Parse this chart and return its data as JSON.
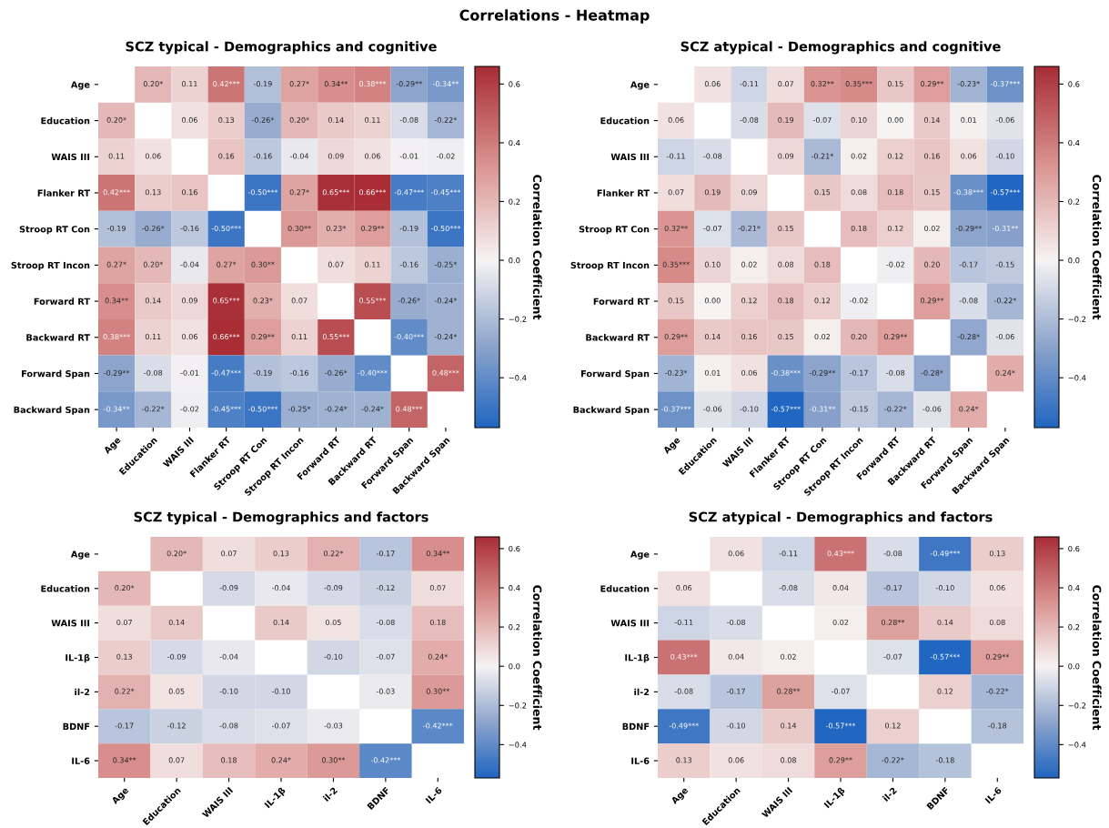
{
  "chart_data": [
    {
      "type": "heatmap",
      "title": "SCZ typical - Demographics and cognitive",
      "clabel": "Correlation Coefficient",
      "annotations": [
        "Correlations - Heatmap"
      ],
      "categories": [
        "Age",
        "Education",
        "WAIS III",
        "Flanker RT",
        "Stroop RT Con",
        "Stroop RT Incon",
        "Forward RT",
        "Backward RT",
        "Forward Span",
        "Backward Span"
      ],
      "y_categories": [
        "Age",
        "Education",
        "WAIS III",
        "Flanker RT",
        "Stroop RT Con",
        "Stroop RT Incon",
        "Forward RT",
        "Backward RT",
        "Forward Span",
        "Backward Span"
      ],
      "clim": [
        -0.57,
        0.66
      ],
      "cticks": [
        {
          "value": -0.4,
          "label": "−0.4"
        },
        {
          "value": -0.2,
          "label": "−0.2"
        },
        {
          "value": 0.0,
          "label": "0.0"
        },
        0.2,
        0.4,
        0.6
      ],
      "cells": [
        [
          null,
          0.2,
          0.11,
          0.42,
          -0.19,
          0.27,
          0.34,
          0.38,
          -0.29,
          -0.34
        ],
        [
          0.2,
          null,
          0.06,
          0.13,
          -0.26,
          0.2,
          0.14,
          0.11,
          -0.08,
          -0.22
        ],
        [
          0.11,
          0.06,
          null,
          0.16,
          -0.16,
          -0.04,
          0.09,
          0.06,
          -0.01,
          -0.02
        ],
        [
          0.42,
          0.13,
          0.16,
          null,
          -0.5,
          0.27,
          0.65,
          0.66,
          -0.47,
          -0.45
        ],
        [
          -0.19,
          -0.26,
          -0.16,
          -0.5,
          null,
          0.3,
          0.23,
          0.29,
          -0.19,
          -0.5
        ],
        [
          0.27,
          0.2,
          -0.04,
          0.27,
          0.3,
          null,
          0.07,
          0.11,
          -0.16,
          -0.25
        ],
        [
          0.34,
          0.14,
          0.09,
          0.65,
          0.23,
          0.07,
          null,
          0.55,
          -0.26,
          -0.24
        ],
        [
          0.38,
          0.11,
          0.06,
          0.66,
          0.29,
          0.11,
          0.55,
          null,
          -0.4,
          -0.24
        ],
        [
          -0.29,
          -0.08,
          -0.01,
          -0.47,
          -0.19,
          -0.16,
          -0.26,
          -0.4,
          null,
          0.48
        ],
        [
          -0.34,
          -0.22,
          -0.02,
          -0.45,
          -0.5,
          -0.25,
          -0.24,
          -0.24,
          0.48,
          null
        ]
      ],
      "cell_labels": [
        [
          null,
          "0.20*",
          "0.11",
          "0.42***",
          "-0.19",
          "0.27*",
          "0.34**",
          "0.38***",
          "-0.29**",
          "-0.34**"
        ],
        [
          "0.20*",
          null,
          "0.06",
          "0.13",
          "-0.26*",
          "0.20*",
          "0.14",
          "0.11",
          "-0.08",
          "-0.22*"
        ],
        [
          "0.11",
          "0.06",
          null,
          "0.16",
          "-0.16",
          "-0.04",
          "0.09",
          "0.06",
          "-0.01",
          "-0.02"
        ],
        [
          "0.42***",
          "0.13",
          "0.16",
          null,
          "-0.50***",
          "0.27*",
          "0.65***",
          "0.66***",
          "-0.47***",
          "-0.45***"
        ],
        [
          "-0.19",
          "-0.26*",
          "-0.16",
          "-0.50***",
          null,
          "0.30**",
          "0.23*",
          "0.29**",
          "-0.19",
          "-0.50***"
        ],
        [
          "0.27*",
          "0.20*",
          "-0.04",
          "0.27*",
          "0.30**",
          null,
          "0.07",
          "0.11",
          "-0.16",
          "-0.25*"
        ],
        [
          "0.34**",
          "0.14",
          "0.09",
          "0.65***",
          "0.23*",
          "0.07",
          null,
          "0.55***",
          "-0.26*",
          "-0.24*"
        ],
        [
          "0.38***",
          "0.11",
          "0.06",
          "0.66***",
          "0.29**",
          "0.11",
          "0.55***",
          null,
          "-0.40***",
          "-0.24*"
        ],
        [
          "-0.29**",
          "-0.08",
          "-0.01",
          "-0.47***",
          "-0.19",
          "-0.16",
          "-0.26*",
          "-0.40***",
          null,
          "0.48***"
        ],
        [
          "-0.34**",
          "-0.22*",
          "-0.02",
          "-0.45***",
          "-0.50***",
          "-0.25*",
          "-0.24*",
          "-0.24*",
          "0.48***",
          null
        ]
      ]
    },
    {
      "type": "heatmap",
      "title": "SCZ atypical - Demographics and cognitive",
      "clabel": "Correlation Coefficient",
      "categories": [
        "Age",
        "Education",
        "WAIS III",
        "Flanker RT",
        "Stroop RT Con",
        "Stroop RT Incon",
        "Forward RT",
        "Backward RT",
        "Forward Span",
        "Backward Span"
      ],
      "y_categories": [
        "Age",
        "Education",
        "WAIS III",
        "Flanker RT",
        "Stroop RT Con",
        "Stroop RT Incon",
        "Forward RT",
        "Backward RT",
        "Forward Span",
        "Backward Span"
      ],
      "clim": [
        -0.57,
        0.66
      ],
      "cticks": [
        {
          "value": -0.4,
          "label": "−0.4"
        },
        {
          "value": -0.2,
          "label": "−0.2"
        },
        {
          "value": 0.0,
          "label": "0.0"
        },
        0.2,
        0.4,
        0.6
      ],
      "cells": [
        [
          null,
          0.06,
          -0.11,
          0.07,
          0.32,
          0.35,
          0.15,
          0.29,
          -0.23,
          -0.37
        ],
        [
          0.06,
          null,
          -0.08,
          0.19,
          -0.07,
          0.1,
          0.0,
          0.14,
          0.01,
          -0.06
        ],
        [
          -0.11,
          -0.08,
          null,
          0.09,
          -0.21,
          0.02,
          0.12,
          0.16,
          0.06,
          -0.1
        ],
        [
          0.07,
          0.19,
          0.09,
          null,
          0.15,
          0.08,
          0.18,
          0.15,
          -0.38,
          -0.57
        ],
        [
          0.32,
          -0.07,
          -0.21,
          0.15,
          null,
          0.18,
          0.12,
          0.02,
          -0.29,
          -0.31
        ],
        [
          0.35,
          0.1,
          0.02,
          0.08,
          0.18,
          null,
          -0.02,
          0.2,
          -0.17,
          -0.15
        ],
        [
          0.15,
          0.0,
          0.12,
          0.18,
          0.12,
          -0.02,
          null,
          0.29,
          -0.08,
          -0.22
        ],
        [
          0.29,
          0.14,
          0.16,
          0.15,
          0.02,
          0.2,
          0.29,
          null,
          -0.28,
          -0.06
        ],
        [
          -0.23,
          0.01,
          0.06,
          -0.38,
          -0.29,
          -0.17,
          -0.08,
          -0.28,
          null,
          0.24
        ],
        [
          -0.37,
          -0.06,
          -0.1,
          -0.57,
          -0.31,
          -0.15,
          -0.22,
          -0.06,
          0.24,
          null
        ]
      ],
      "cell_labels": [
        [
          null,
          "0.06",
          "-0.11",
          "0.07",
          "0.32**",
          "0.35***",
          "0.15",
          "0.29**",
          "-0.23*",
          "-0.37***"
        ],
        [
          "0.06",
          null,
          "-0.08",
          "0.19",
          "-0.07",
          "0.10",
          "0.00",
          "0.14",
          "0.01",
          "-0.06"
        ],
        [
          "-0.11",
          "-0.08",
          null,
          "0.09",
          "-0.21*",
          "0.02",
          "0.12",
          "0.16",
          "0.06",
          "-0.10"
        ],
        [
          "0.07",
          "0.19",
          "0.09",
          null,
          "0.15",
          "0.08",
          "0.18",
          "0.15",
          "-0.38***",
          "-0.57***"
        ],
        [
          "0.32**",
          "-0.07",
          "-0.21*",
          "0.15",
          null,
          "0.18",
          "0.12",
          "0.02",
          "-0.29**",
          "-0.31**"
        ],
        [
          "0.35***",
          "0.10",
          "0.02",
          "0.08",
          "0.18",
          null,
          "-0.02",
          "0.20",
          "-0.17",
          "-0.15"
        ],
        [
          "0.15",
          "0.00",
          "0.12",
          "0.18",
          "0.12",
          "-0.02",
          null,
          "0.29**",
          "-0.08",
          "-0.22*"
        ],
        [
          "0.29**",
          "0.14",
          "0.16",
          "0.15",
          "0.02",
          "0.20",
          "0.29**",
          null,
          "-0.28*",
          "-0.06"
        ],
        [
          "-0.23*",
          "0.01",
          "0.06",
          "-0.38***",
          "-0.29**",
          "-0.17",
          "-0.08",
          "-0.28*",
          null,
          "0.24*"
        ],
        [
          "-0.37***",
          "-0.06",
          "-0.10",
          "-0.57***",
          "-0.31**",
          "-0.15",
          "-0.22*",
          "-0.06",
          "0.24*",
          null
        ]
      ]
    },
    {
      "type": "heatmap",
      "title": "SCZ typical - Demographics and factors",
      "clabel": "Correlation Coefficient",
      "categories": [
        "Age",
        "Education",
        "WAIS III",
        "IL-1β",
        "il-2",
        "BDNF",
        "IL-6"
      ],
      "y_categories": [
        "Age",
        "Education",
        "WAIS III",
        "IL-1β",
        "il-2",
        "BDNF",
        "IL-6"
      ],
      "clim": [
        -0.57,
        0.66
      ],
      "cticks": [
        {
          "value": -0.4,
          "label": "−0.4"
        },
        {
          "value": -0.2,
          "label": "−0.2"
        },
        {
          "value": 0.0,
          "label": "0.0"
        },
        0.2,
        0.4,
        0.6
      ],
      "cells": [
        [
          null,
          0.2,
          0.07,
          0.13,
          0.22,
          -0.17,
          0.34
        ],
        [
          0.2,
          null,
          -0.09,
          -0.04,
          -0.09,
          -0.12,
          0.07
        ],
        [
          0.07,
          0.14,
          null,
          0.14,
          0.05,
          -0.08,
          0.18
        ],
        [
          0.13,
          -0.09,
          -0.04,
          null,
          -0.1,
          -0.07,
          0.24
        ],
        [
          0.22,
          0.05,
          -0.1,
          -0.1,
          null,
          -0.03,
          0.3
        ],
        [
          -0.17,
          -0.12,
          -0.08,
          -0.07,
          -0.03,
          null,
          -0.42
        ],
        [
          0.34,
          0.07,
          0.18,
          0.24,
          0.3,
          -0.42,
          null
        ]
      ],
      "cell_labels": [
        [
          null,
          "0.20*",
          "0.07",
          "0.13",
          "0.22*",
          "-0.17",
          "0.34**"
        ],
        [
          "0.20*",
          null,
          "-0.09",
          "-0.04",
          "-0.09",
          "-0.12",
          "0.07"
        ],
        [
          "0.07",
          "0.14",
          null,
          "0.14",
          "0.05",
          "-0.08",
          "0.18"
        ],
        [
          "0.13",
          "-0.09",
          "-0.04",
          null,
          "-0.10",
          "-0.07",
          "0.24*"
        ],
        [
          "0.22*",
          "0.05",
          "-0.10",
          "-0.10",
          null,
          "-0.03",
          "0.30**"
        ],
        [
          "-0.17",
          "-0.12",
          "-0.08",
          "-0.07",
          "-0.03",
          null,
          "-0.42***"
        ],
        [
          "0.34**",
          "0.07",
          "0.18",
          "0.24*",
          "0.30**",
          "-0.42***",
          null
        ]
      ]
    },
    {
      "type": "heatmap",
      "title": "SCZ atypical - Demographics and factors",
      "clabel": "Correlation Coefficient",
      "categories": [
        "Age",
        "Education",
        "WAIS III",
        "IL-1β",
        "il-2",
        "BDNF",
        "IL-6"
      ],
      "y_categories": [
        "Age",
        "Education",
        "WAIS III",
        "IL-1β",
        "il-2",
        "BDNF",
        "IL-6"
      ],
      "clim": [
        -0.57,
        0.66
      ],
      "cticks": [
        {
          "value": -0.4,
          "label": "−0.4"
        },
        {
          "value": -0.2,
          "label": "−0.2"
        },
        {
          "value": 0.0,
          "label": "0.0"
        },
        0.2,
        0.4,
        0.6
      ],
      "cells": [
        [
          null,
          0.06,
          -0.11,
          0.43,
          -0.08,
          -0.49,
          0.13
        ],
        [
          0.06,
          null,
          -0.08,
          0.04,
          -0.17,
          -0.1,
          0.06
        ],
        [
          -0.11,
          -0.08,
          null,
          0.02,
          0.28,
          0.14,
          0.08
        ],
        [
          0.43,
          0.04,
          0.02,
          null,
          -0.07,
          -0.57,
          0.29
        ],
        [
          -0.08,
          -0.17,
          0.28,
          -0.07,
          null,
          0.12,
          -0.22
        ],
        [
          -0.49,
          -0.1,
          0.14,
          -0.57,
          0.12,
          null,
          -0.18
        ],
        [
          0.13,
          0.06,
          0.08,
          0.29,
          -0.22,
          -0.18,
          null
        ]
      ],
      "cell_labels": [
        [
          null,
          "0.06",
          "-0.11",
          "0.43***",
          "-0.08",
          "-0.49***",
          "0.13"
        ],
        [
          "0.06",
          null,
          "-0.08",
          "0.04",
          "-0.17",
          "-0.10",
          "0.06"
        ],
        [
          "-0.11",
          "-0.08",
          null,
          "0.02",
          "0.28**",
          "0.14",
          "0.08"
        ],
        [
          "0.43***",
          "0.04",
          "0.02",
          null,
          "-0.07",
          "-0.57***",
          "0.29**"
        ],
        [
          "-0.08",
          "-0.17",
          "0.28**",
          "-0.07",
          null,
          "0.12",
          "-0.22*"
        ],
        [
          "-0.49***",
          "-0.10",
          "0.14",
          "-0.57***",
          "0.12",
          null,
          "-0.18"
        ],
        [
          "0.13",
          "0.06",
          "0.08",
          "0.29**",
          "-0.22*",
          "-0.18",
          null
        ]
      ]
    }
  ]
}
